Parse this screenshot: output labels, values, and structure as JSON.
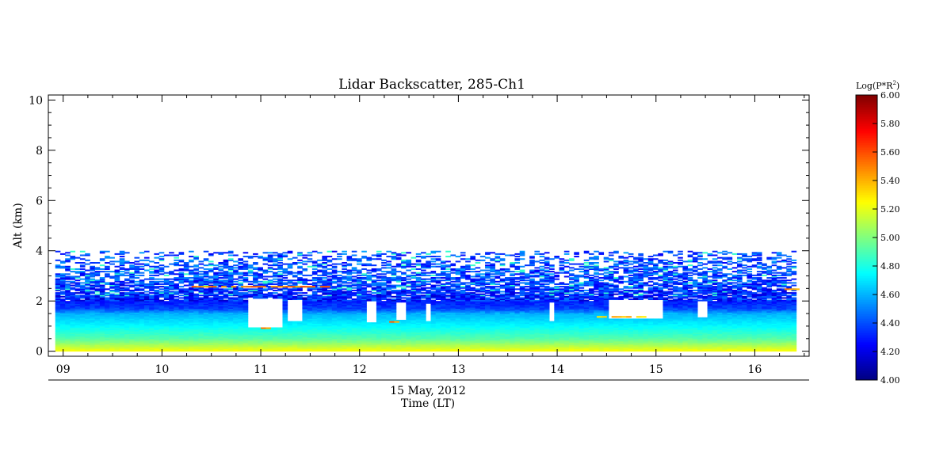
{
  "chart_data": {
    "type": "heatmap",
    "title": "Lidar Backscatter, 285-Ch1",
    "xlabel_date": "15 May, 2012",
    "xlabel": "Time (LT)",
    "ylabel": "Alt (km)",
    "xlim": [
      8.85,
      16.55
    ],
    "ylim": [
      -0.2,
      10.2
    ],
    "x_data_range": [
      8.92,
      16.42
    ],
    "y_data_range": [
      0.0,
      4.0
    ],
    "xticks": [
      9,
      10,
      11,
      12,
      13,
      14,
      15,
      16
    ],
    "xtick_labels": [
      "09",
      "10",
      "11",
      "12",
      "13",
      "14",
      "15",
      "16"
    ],
    "yticks": [
      0,
      2,
      4,
      6,
      8,
      10
    ],
    "ytick_labels": [
      "0",
      "2",
      "4",
      "6",
      "8",
      "10"
    ],
    "colorbar": {
      "label": "Log(P*R",
      "label_sup": "2",
      "label_end": ")",
      "range": [
        4.0,
        6.0
      ],
      "ticks": [
        4.0,
        4.2,
        4.4,
        4.6,
        4.8,
        5.0,
        5.2,
        5.4,
        5.6,
        5.8,
        6.0
      ],
      "tick_labels": [
        "4.00",
        "4.20",
        "4.40",
        "4.60",
        "4.80",
        "5.00",
        "5.20",
        "5.40",
        "5.60",
        "5.80",
        "6.00"
      ],
      "colormap": "jet"
    },
    "profile_altitudes_km": [
      0.0,
      0.5,
      1.0,
      1.5,
      1.7,
      2.0,
      2.5,
      3.0,
      4.0
    ],
    "profile_values": [
      5.25,
      4.92,
      4.75,
      4.6,
      4.38,
      4.3,
      4.35,
      4.4,
      4.4
    ],
    "aerosol_layers": [
      {
        "x_start": 10.3,
        "x_end": 11.75,
        "alt_km": 2.55,
        "value": 5.5
      },
      {
        "x_start": 16.3,
        "x_end": 16.42,
        "alt_km": 2.45,
        "value": 5.45
      },
      {
        "x_start": 11.0,
        "x_end": 11.1,
        "alt_km": 0.9,
        "value": 5.45
      },
      {
        "x_start": 12.3,
        "x_end": 12.4,
        "alt_km": 1.15,
        "value": 5.5
      },
      {
        "x_start": 14.4,
        "x_end": 14.9,
        "alt_km": 1.35,
        "value": 5.35
      }
    ],
    "gaps": [
      {
        "x_start": 10.88,
        "x_end": 11.2,
        "alt_bottom_km": 0.95,
        "alt_top_km": 2.1
      },
      {
        "x_start": 11.28,
        "x_end": 11.4,
        "alt_bottom_km": 1.2,
        "alt_top_km": 2.05
      },
      {
        "x_start": 12.05,
        "x_end": 12.18,
        "alt_bottom_km": 1.15,
        "alt_top_km": 2.0
      },
      {
        "x_start": 12.35,
        "x_end": 12.45,
        "alt_bottom_km": 1.25,
        "alt_top_km": 1.95
      },
      {
        "x_start": 12.65,
        "x_end": 12.72,
        "alt_bottom_km": 1.2,
        "alt_top_km": 1.9
      },
      {
        "x_start": 13.9,
        "x_end": 13.96,
        "alt_bottom_km": 1.2,
        "alt_top_km": 1.95
      },
      {
        "x_start": 14.5,
        "x_end": 15.05,
        "alt_bottom_km": 1.3,
        "alt_top_km": 2.05
      },
      {
        "x_start": 15.4,
        "x_end": 15.5,
        "alt_bottom_km": 1.35,
        "alt_top_km": 2.0
      }
    ]
  }
}
